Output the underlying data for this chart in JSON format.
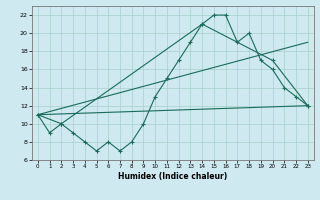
{
  "title": "",
  "xlabel": "Humidex (Indice chaleur)",
  "bg_color": "#cee9f0",
  "grid_color": "#a8d0c8",
  "line_color": "#1a6b5a",
  "xlim": [
    -0.5,
    23.5
  ],
  "ylim": [
    6,
    23
  ],
  "yticks": [
    6,
    8,
    10,
    12,
    14,
    16,
    18,
    20,
    22
  ],
  "xticks": [
    0,
    1,
    2,
    3,
    4,
    5,
    6,
    7,
    8,
    9,
    10,
    11,
    12,
    13,
    14,
    15,
    16,
    17,
    18,
    19,
    20,
    21,
    22,
    23
  ],
  "series1_x": [
    0,
    1,
    2,
    3,
    4,
    5,
    6,
    7,
    8,
    9,
    10,
    11,
    12,
    13,
    14,
    15,
    16,
    17,
    18,
    19,
    20,
    21,
    22,
    23
  ],
  "series1_y": [
    11,
    9,
    10,
    9,
    8,
    7,
    8,
    7,
    8,
    10,
    13,
    15,
    17,
    19,
    21,
    22,
    22,
    19,
    20,
    17,
    16,
    14,
    13,
    12
  ],
  "series2_x": [
    0,
    2,
    14,
    20,
    23
  ],
  "series2_y": [
    11,
    10,
    21,
    17,
    12
  ],
  "series3_x": [
    0,
    23
  ],
  "series3_y": [
    11,
    12
  ],
  "series4_x": [
    0,
    23
  ],
  "series4_y": [
    11,
    19
  ]
}
